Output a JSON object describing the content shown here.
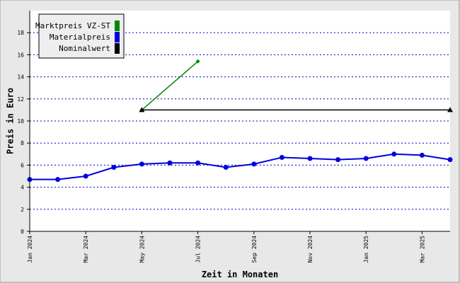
{
  "chart_data": {
    "type": "line",
    "xlabel": "Zeit in Monaten",
    "ylabel": "Preis in Euro",
    "categories": [
      "Jan 2024",
      null,
      "Mar 2024",
      null,
      "May 2024",
      null,
      "Jul 2024",
      null,
      "Sep 2024",
      null,
      "Nov 2024",
      null,
      "Jan 2025",
      null,
      "Mar 2025",
      null
    ],
    "series": [
      {
        "name": "Marktpreis VZ-ST",
        "color": "#008800",
        "marker": "diamond",
        "marker_at": "ends",
        "values": [
          null,
          null,
          null,
          null,
          11.0,
          13.2,
          15.4,
          null,
          null,
          null,
          null,
          null,
          null,
          null,
          null,
          null
        ]
      },
      {
        "name": "Materialpreis",
        "color": "#0000dd",
        "marker": "circle",
        "marker_at": "all",
        "values": [
          4.7,
          4.7,
          5.0,
          5.8,
          6.1,
          6.2,
          6.2,
          5.8,
          6.1,
          6.7,
          6.6,
          6.5,
          6.6,
          7.0,
          6.9,
          6.5
        ]
      },
      {
        "name": "Nominalwert",
        "color": "#000000",
        "marker": "triangle",
        "marker_at": "ends",
        "values": [
          null,
          null,
          null,
          null,
          11,
          11,
          11,
          11,
          11,
          11,
          11,
          11,
          11,
          11,
          11,
          11
        ]
      }
    ],
    "ylim": [
      0,
      20
    ],
    "yticks": [
      0,
      2,
      4,
      6,
      8,
      10,
      12,
      14,
      16,
      18
    ],
    "grid": true,
    "legend": "top-left"
  }
}
